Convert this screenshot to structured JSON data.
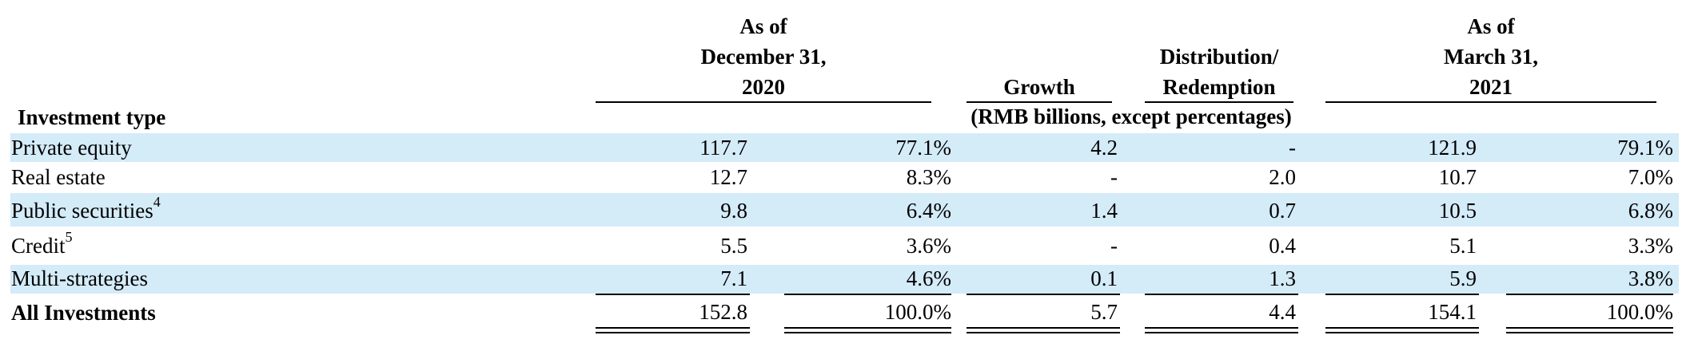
{
  "header": {
    "col_dec": [
      "As of",
      "December 31,",
      "2020"
    ],
    "col_growth": "Growth",
    "col_dist": [
      "Distribution/",
      "Redemption"
    ],
    "col_mar": [
      "As of",
      "March 31,",
      "2021"
    ],
    "row_label": "Investment type",
    "units": "(RMB billions, except percentages)"
  },
  "rows": [
    {
      "label": "Private equity",
      "sup": "",
      "dec_val": "117.7",
      "dec_pct": "77.1%",
      "growth": "4.2",
      "dist": "-",
      "mar_val": "121.9",
      "mar_pct": "79.1%"
    },
    {
      "label": "Real estate",
      "sup": "",
      "dec_val": "12.7",
      "dec_pct": "8.3%",
      "growth": "-",
      "dist": "2.0",
      "mar_val": "10.7",
      "mar_pct": "7.0%"
    },
    {
      "label": "Public securities",
      "sup": "4",
      "dec_val": "9.8",
      "dec_pct": "6.4%",
      "growth": "1.4",
      "dist": "0.7",
      "mar_val": "10.5",
      "mar_pct": "6.8%"
    },
    {
      "label": "Credit",
      "sup": "5",
      "dec_val": "5.5",
      "dec_pct": "3.6%",
      "growth": "-",
      "dist": "0.4",
      "mar_val": "5.1",
      "mar_pct": "3.3%"
    },
    {
      "label": "Multi-strategies",
      "sup": "",
      "dec_val": "7.1",
      "dec_pct": "4.6%",
      "growth": "0.1",
      "dist": "1.3",
      "mar_val": "5.9",
      "mar_pct": "3.8%"
    }
  ],
  "total": {
    "label": "All Investments",
    "dec_val": "152.8",
    "dec_pct": "100.0%",
    "growth": "5.7",
    "dist": "4.4",
    "mar_val": "154.1",
    "mar_pct": "100.0%"
  },
  "colors": {
    "band": "#d4ebf8"
  }
}
